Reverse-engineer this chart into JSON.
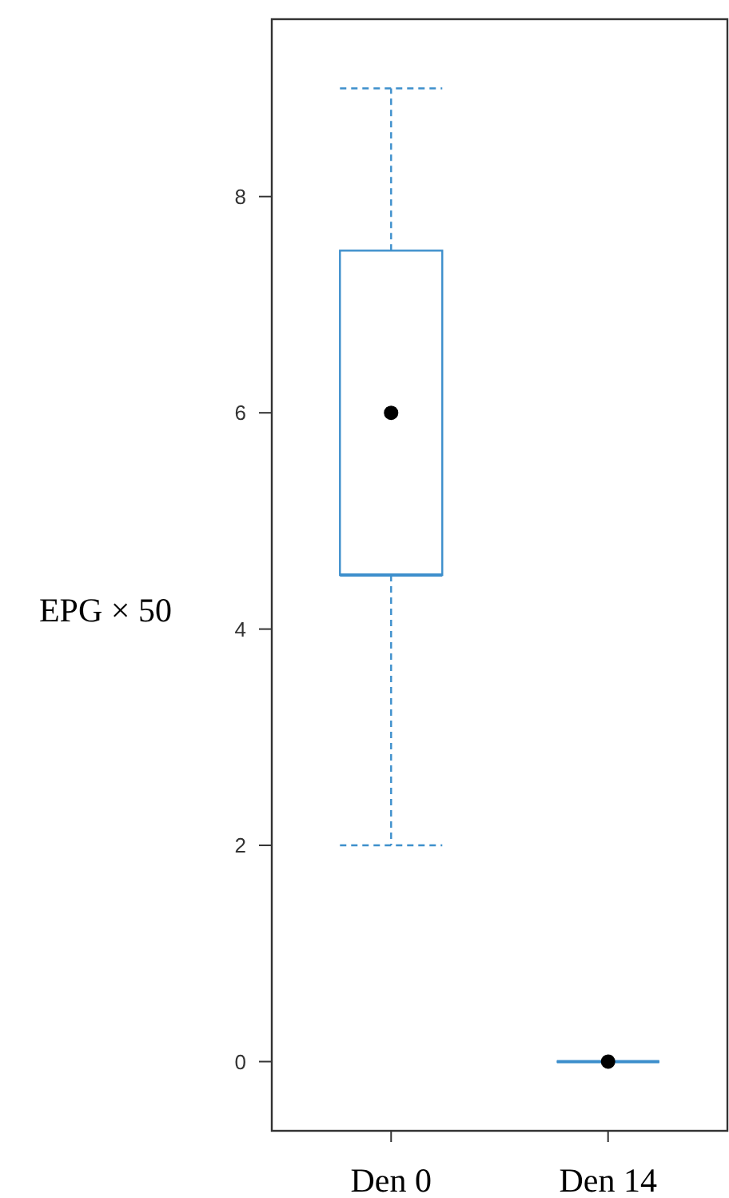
{
  "chart_data": {
    "type": "box",
    "ylabel": "EPG × 50",
    "categories": [
      "Den 0",
      "Den 14"
    ],
    "ylim": [
      -0.64,
      9.64
    ],
    "yticks": [
      0,
      2,
      4,
      6,
      8
    ],
    "grid": false,
    "line_style": "dashed",
    "series": [
      {
        "color": "#3d8fcc",
        "boxes": [
          {
            "low": 2,
            "q1": 4.5,
            "median": 4.5,
            "q3": 7.5,
            "high": 9,
            "mean": 6
          },
          {
            "low": 0,
            "q1": 0,
            "median": 0,
            "q3": 0,
            "high": 0,
            "mean": 0
          }
        ]
      }
    ]
  }
}
